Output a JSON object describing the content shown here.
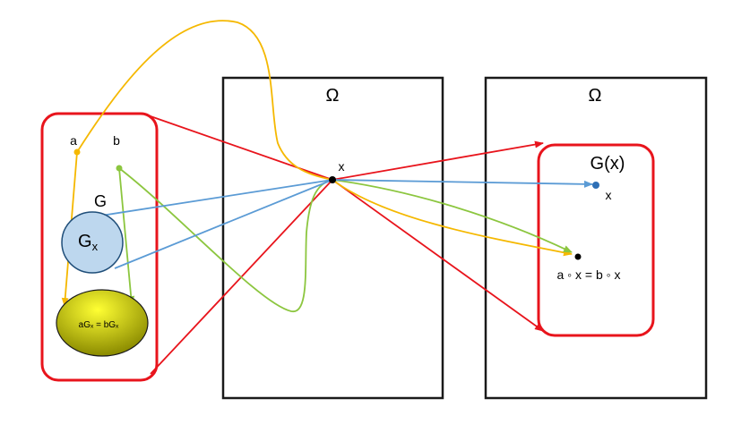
{
  "labels": {
    "omega_left": "Ω",
    "omega_right": "Ω",
    "point_x": "x",
    "label_a": "a",
    "label_b": "b",
    "label_G": "G",
    "label_Gx_main": "G",
    "label_Gx_sub": "x",
    "label_aGx_bGx": "aGₓ = bGₓ",
    "orbit_label": "G(x)",
    "orbit_point_x": "x",
    "equation": "a ◦ x = b ◦ x"
  },
  "colors": {
    "red": "#e8141c",
    "yellow": "#f5b800",
    "green": "#8cc63f",
    "blue": "#5b9bd5",
    "stabilizer_fill": "#bdd7ee",
    "coset_fill_light": "#ffff33",
    "coset_fill_dark": "#8a8a00",
    "box": "#1a1a1a"
  }
}
